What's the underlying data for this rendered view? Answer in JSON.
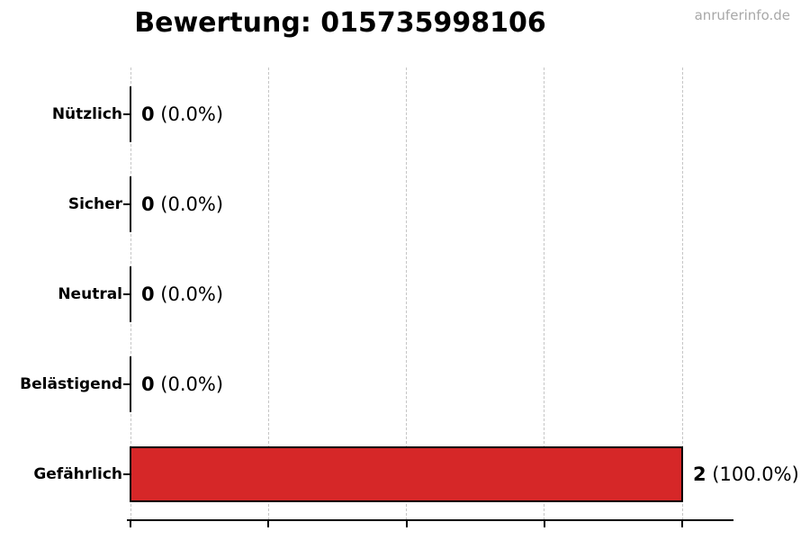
{
  "header": {
    "watermark": "anruferinfo.de"
  },
  "chart_data": {
    "type": "bar",
    "orientation": "horizontal",
    "title": "Bewertung: 015735998106",
    "categories": [
      "Nützlich",
      "Sicher",
      "Neutral",
      "Belästigend",
      "Gefährlich"
    ],
    "values": [
      0,
      0,
      0,
      0,
      2
    ],
    "counts": [
      "0",
      "0",
      "0",
      "0",
      "2"
    ],
    "percents": [
      "(0.0%)",
      "(0.0%)",
      "(0.0%)",
      "(0.0%)",
      "(100.0%)"
    ],
    "total_votes": 2,
    "xlim": [
      0,
      2.19
    ],
    "x_gridlines": [
      0,
      0.5,
      1,
      1.5,
      2
    ],
    "grid": "vertical-dashed",
    "legend": "none",
    "xlabel": "",
    "ylabel": "",
    "colors": {
      "bar": "#d62728",
      "bar_edge": "#000000",
      "grid": "#c6c6c6",
      "axis": "#000000",
      "text": "#000000",
      "watermark": "#a8a8a8",
      "background": "#ffffff"
    }
  }
}
